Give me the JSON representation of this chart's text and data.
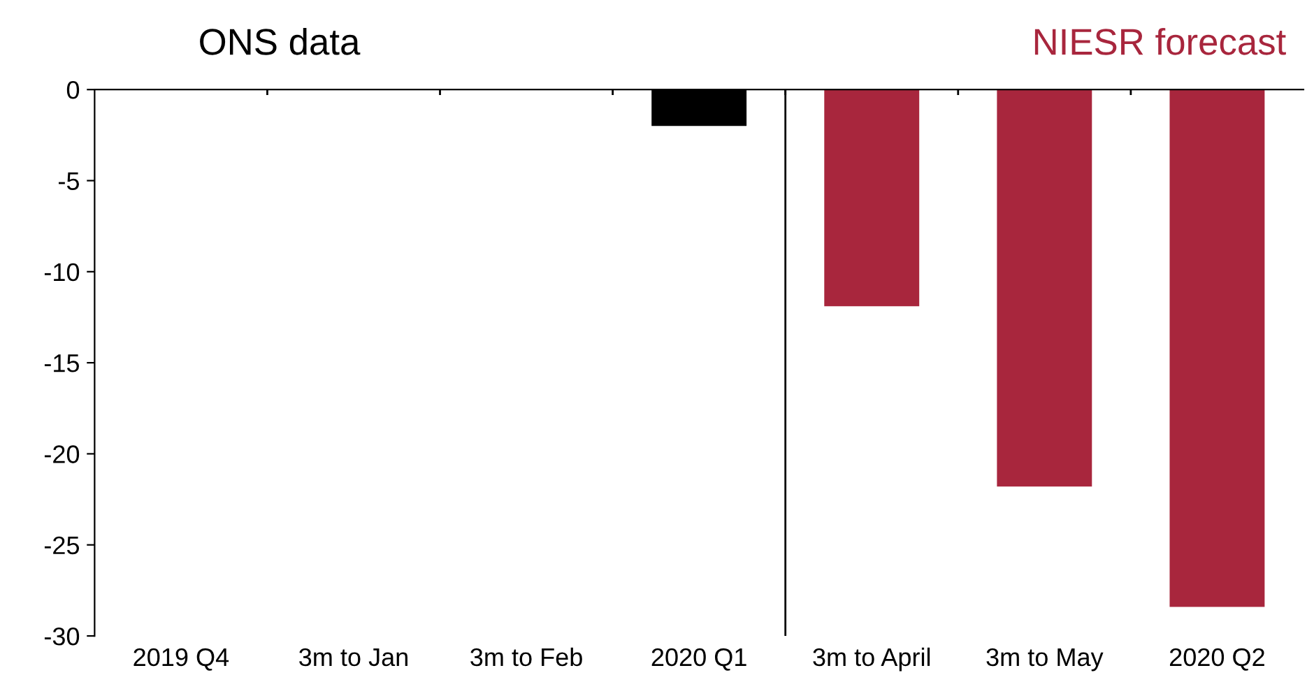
{
  "chart_data": {
    "type": "bar",
    "categories": [
      "2019 Q4",
      "3m to Jan",
      "3m to Feb",
      "2020 Q1",
      "3m to April",
      "3m to May",
      "2020 Q2"
    ],
    "values": [
      0,
      0,
      0,
      -2.0,
      -11.9,
      -21.8,
      -28.4
    ],
    "colors": [
      "#000000",
      "#000000",
      "#000000",
      "#000000",
      "#a8263d",
      "#a8263d",
      "#a8263d"
    ],
    "ylim": [
      -30,
      0
    ],
    "yticks": [
      -30,
      -25,
      -20,
      -15,
      -10,
      -5,
      0
    ],
    "annotations": [
      "ONS data",
      "NIESR forecast"
    ],
    "grid": false,
    "legend": false
  }
}
